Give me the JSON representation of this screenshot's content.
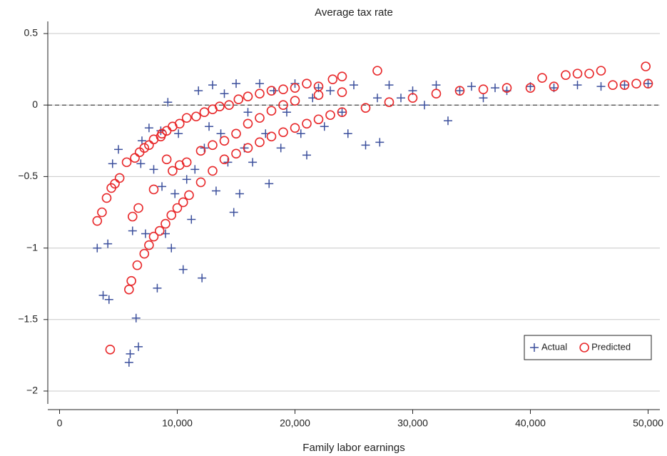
{
  "chart_data": {
    "type": "scatter",
    "title": "Average tax rate",
    "x_label": "Family labor earnings",
    "xlim": [
      -1000,
      51000
    ],
    "ylim": [
      -2.09,
      0.585
    ],
    "xticks": [
      0,
      {
        "value": 10000,
        "label": "10,000"
      },
      {
        "value": 20000,
        "label": "20,000"
      },
      {
        "value": 30000,
        "label": "30,000"
      },
      {
        "value": 40000,
        "label": "40,000"
      },
      {
        "value": 50000,
        "label": "50,000"
      }
    ],
    "yticks": [
      0.5,
      0,
      {
        "value": -0.5,
        "label": "−0.5"
      },
      {
        "value": -1,
        "label": "−1"
      },
      {
        "value": -1.5,
        "label": "−1.5"
      },
      {
        "value": -2,
        "label": "−2"
      }
    ],
    "grid": true,
    "reference_line": 0,
    "legend_position": "lower right",
    "series": [
      {
        "name": "Actual",
        "color": "#3b4f9c",
        "marker": "plus",
        "x": [
          3200,
          3700,
          4100,
          4200,
          4500,
          5000,
          5900,
          6000,
          6200,
          6500,
          6700,
          6900,
          7000,
          7300,
          7600,
          8000,
          8300,
          8600,
          8700,
          9000,
          9200,
          9500,
          9800,
          10100,
          10500,
          10800,
          11200,
          11500,
          11800,
          12100,
          12300,
          12700,
          13000,
          13300,
          13700,
          14000,
          14300,
          14800,
          15000,
          15300,
          15700,
          16000,
          16400,
          17000,
          17500,
          17800,
          18200,
          18800,
          19300,
          20000,
          20500,
          21000,
          21500,
          22000,
          22500,
          23000,
          24000,
          24500,
          25000,
          26000,
          27000,
          27200,
          28000,
          29000,
          30000,
          31000,
          32000,
          33000,
          34000,
          35000,
          36000,
          37000,
          38000,
          40000,
          42000,
          44000,
          46000,
          48000,
          50000
        ],
        "values": [
          -1.0,
          -1.33,
          -0.97,
          -1.36,
          -0.41,
          -0.31,
          -1.8,
          -1.74,
          -0.88,
          -1.49,
          -1.69,
          -0.41,
          -0.25,
          -0.9,
          -0.16,
          -0.45,
          -1.28,
          -0.18,
          -0.57,
          -0.9,
          0.02,
          -1.0,
          -0.62,
          -0.2,
          -1.15,
          -0.52,
          -0.8,
          -0.45,
          0.1,
          -1.21,
          -0.3,
          -0.15,
          0.14,
          -0.6,
          -0.2,
          0.08,
          -0.4,
          -0.75,
          0.15,
          -0.62,
          -0.3,
          -0.05,
          -0.4,
          0.15,
          -0.2,
          -0.55,
          0.1,
          -0.3,
          -0.05,
          0.15,
          -0.2,
          -0.35,
          0.05,
          0.12,
          -0.15,
          0.1,
          -0.05,
          -0.2,
          0.14,
          -0.28,
          0.05,
          -0.26,
          0.14,
          0.05,
          0.1,
          0.0,
          0.14,
          -0.11,
          0.1,
          0.13,
          0.05,
          0.12,
          0.1,
          0.13,
          0.12,
          0.14,
          0.13,
          0.14,
          0.15
        ]
      },
      {
        "name": "Predicted",
        "color": "#e8282a",
        "marker": "circle",
        "x": [
          3200,
          3600,
          4000,
          4400,
          4700,
          5100,
          5700,
          6400,
          6800,
          7200,
          7600,
          8000,
          8600,
          9100,
          9600,
          10200,
          10800,
          11600,
          12300,
          13000,
          13600,
          14400,
          15200,
          16000,
          17000,
          18000,
          19000,
          20000,
          21000,
          22000,
          23200,
          24000,
          27000,
          9600,
          10200,
          10800,
          12000,
          13000,
          14000,
          15000,
          16000,
          17000,
          18000,
          19000,
          20000,
          22000,
          24000,
          4300,
          5900,
          6100,
          6600,
          7200,
          7600,
          8000,
          8500,
          9000,
          9500,
          10000,
          10500,
          11000,
          12000,
          13000,
          14000,
          15000,
          16000,
          17000,
          18000,
          19000,
          20000,
          21000,
          22000,
          23000,
          24000,
          26000,
          28000,
          30000,
          32000,
          34000,
          36000,
          38000,
          40000,
          41000,
          42000,
          43000,
          44000,
          45000,
          46000,
          47000,
          48000,
          49000,
          49800,
          50000,
          6200,
          6700,
          8000,
          8700,
          9100
        ],
        "values": [
          -0.81,
          -0.75,
          -0.65,
          -0.58,
          -0.55,
          -0.51,
          -0.4,
          -0.37,
          -0.33,
          -0.3,
          -0.28,
          -0.24,
          -0.22,
          -0.18,
          -0.15,
          -0.13,
          -0.09,
          -0.08,
          -0.05,
          -0.03,
          -0.01,
          0.0,
          0.04,
          0.06,
          0.08,
          0.1,
          0.11,
          0.12,
          0.15,
          0.13,
          0.18,
          0.2,
          0.24,
          -0.46,
          -0.42,
          -0.4,
          -0.32,
          -0.28,
          -0.25,
          -0.2,
          -0.13,
          -0.09,
          -0.04,
          0.0,
          0.03,
          0.07,
          0.09,
          -1.71,
          -1.29,
          -1.23,
          -1.12,
          -1.04,
          -0.98,
          -0.92,
          -0.88,
          -0.83,
          -0.77,
          -0.72,
          -0.68,
          -0.63,
          -0.54,
          -0.46,
          -0.38,
          -0.34,
          -0.3,
          -0.26,
          -0.22,
          -0.19,
          -0.16,
          -0.13,
          -0.1,
          -0.07,
          -0.05,
          -0.02,
          0.02,
          0.05,
          0.08,
          0.1,
          0.11,
          0.12,
          0.12,
          0.19,
          0.13,
          0.21,
          0.22,
          0.22,
          0.24,
          0.14,
          0.14,
          0.15,
          0.27,
          0.15,
          -0.78,
          -0.72,
          -0.59,
          -0.2,
          -0.38
        ]
      }
    ]
  }
}
